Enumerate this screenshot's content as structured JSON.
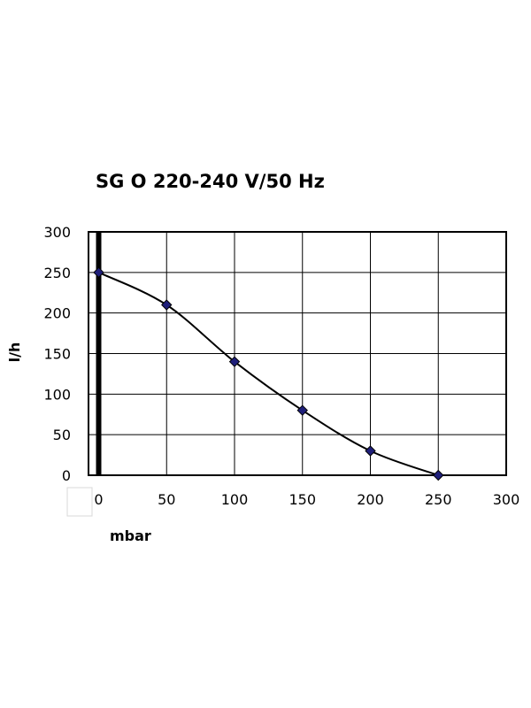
{
  "chart_data": {
    "type": "line",
    "title": "SG O 220-240 V/50 Hz",
    "xlabel": "mbar",
    "ylabel": "l/h",
    "x": [
      0,
      50,
      100,
      150,
      200,
      250
    ],
    "series": [
      {
        "values": [
          250,
          210,
          140,
          80,
          30,
          0
        ]
      }
    ],
    "x_ticks": [
      "0",
      "50",
      "100",
      "150",
      "200",
      "250",
      "300"
    ],
    "y_ticks": [
      "0",
      "50",
      "100",
      "150",
      "200",
      "250",
      "300"
    ],
    "xlim": [
      0,
      300
    ],
    "ylim": [
      0,
      300
    ],
    "grid": true,
    "colors": {
      "marker": "#1f1f7a",
      "line": "#000000",
      "grid": "#000000"
    }
  }
}
